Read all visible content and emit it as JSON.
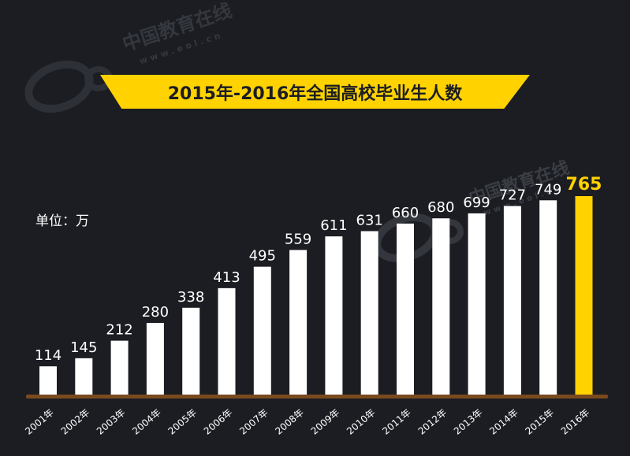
{
  "chart_data": {
    "type": "bar",
    "title": "2015年-2016年全国高校毕业生人数",
    "unit_label": "单位：万",
    "categories": [
      "2001年",
      "2002年",
      "2003年",
      "2004年",
      "2005年",
      "2006年",
      "2007年",
      "2008年",
      "2009年",
      "2010年",
      "2011年",
      "2012年",
      "2013年",
      "2014年",
      "2015年",
      "2016年"
    ],
    "values": [
      114,
      145,
      212,
      280,
      338,
      413,
      495,
      559,
      611,
      631,
      660,
      680,
      699,
      727,
      749,
      765
    ],
    "highlight_index": 15,
    "ylim": [
      0,
      800
    ],
    "xlabel": "",
    "ylabel": "",
    "grid": false,
    "colors": {
      "bar": "#ffffff",
      "highlight": "#ffd200",
      "label": "#ffffff",
      "highlight_label": "#ffd200",
      "baseline": "#7a4a1e"
    }
  },
  "watermark": {
    "site_cn": "中国教育在线",
    "site_url": "www.eol.cn"
  }
}
